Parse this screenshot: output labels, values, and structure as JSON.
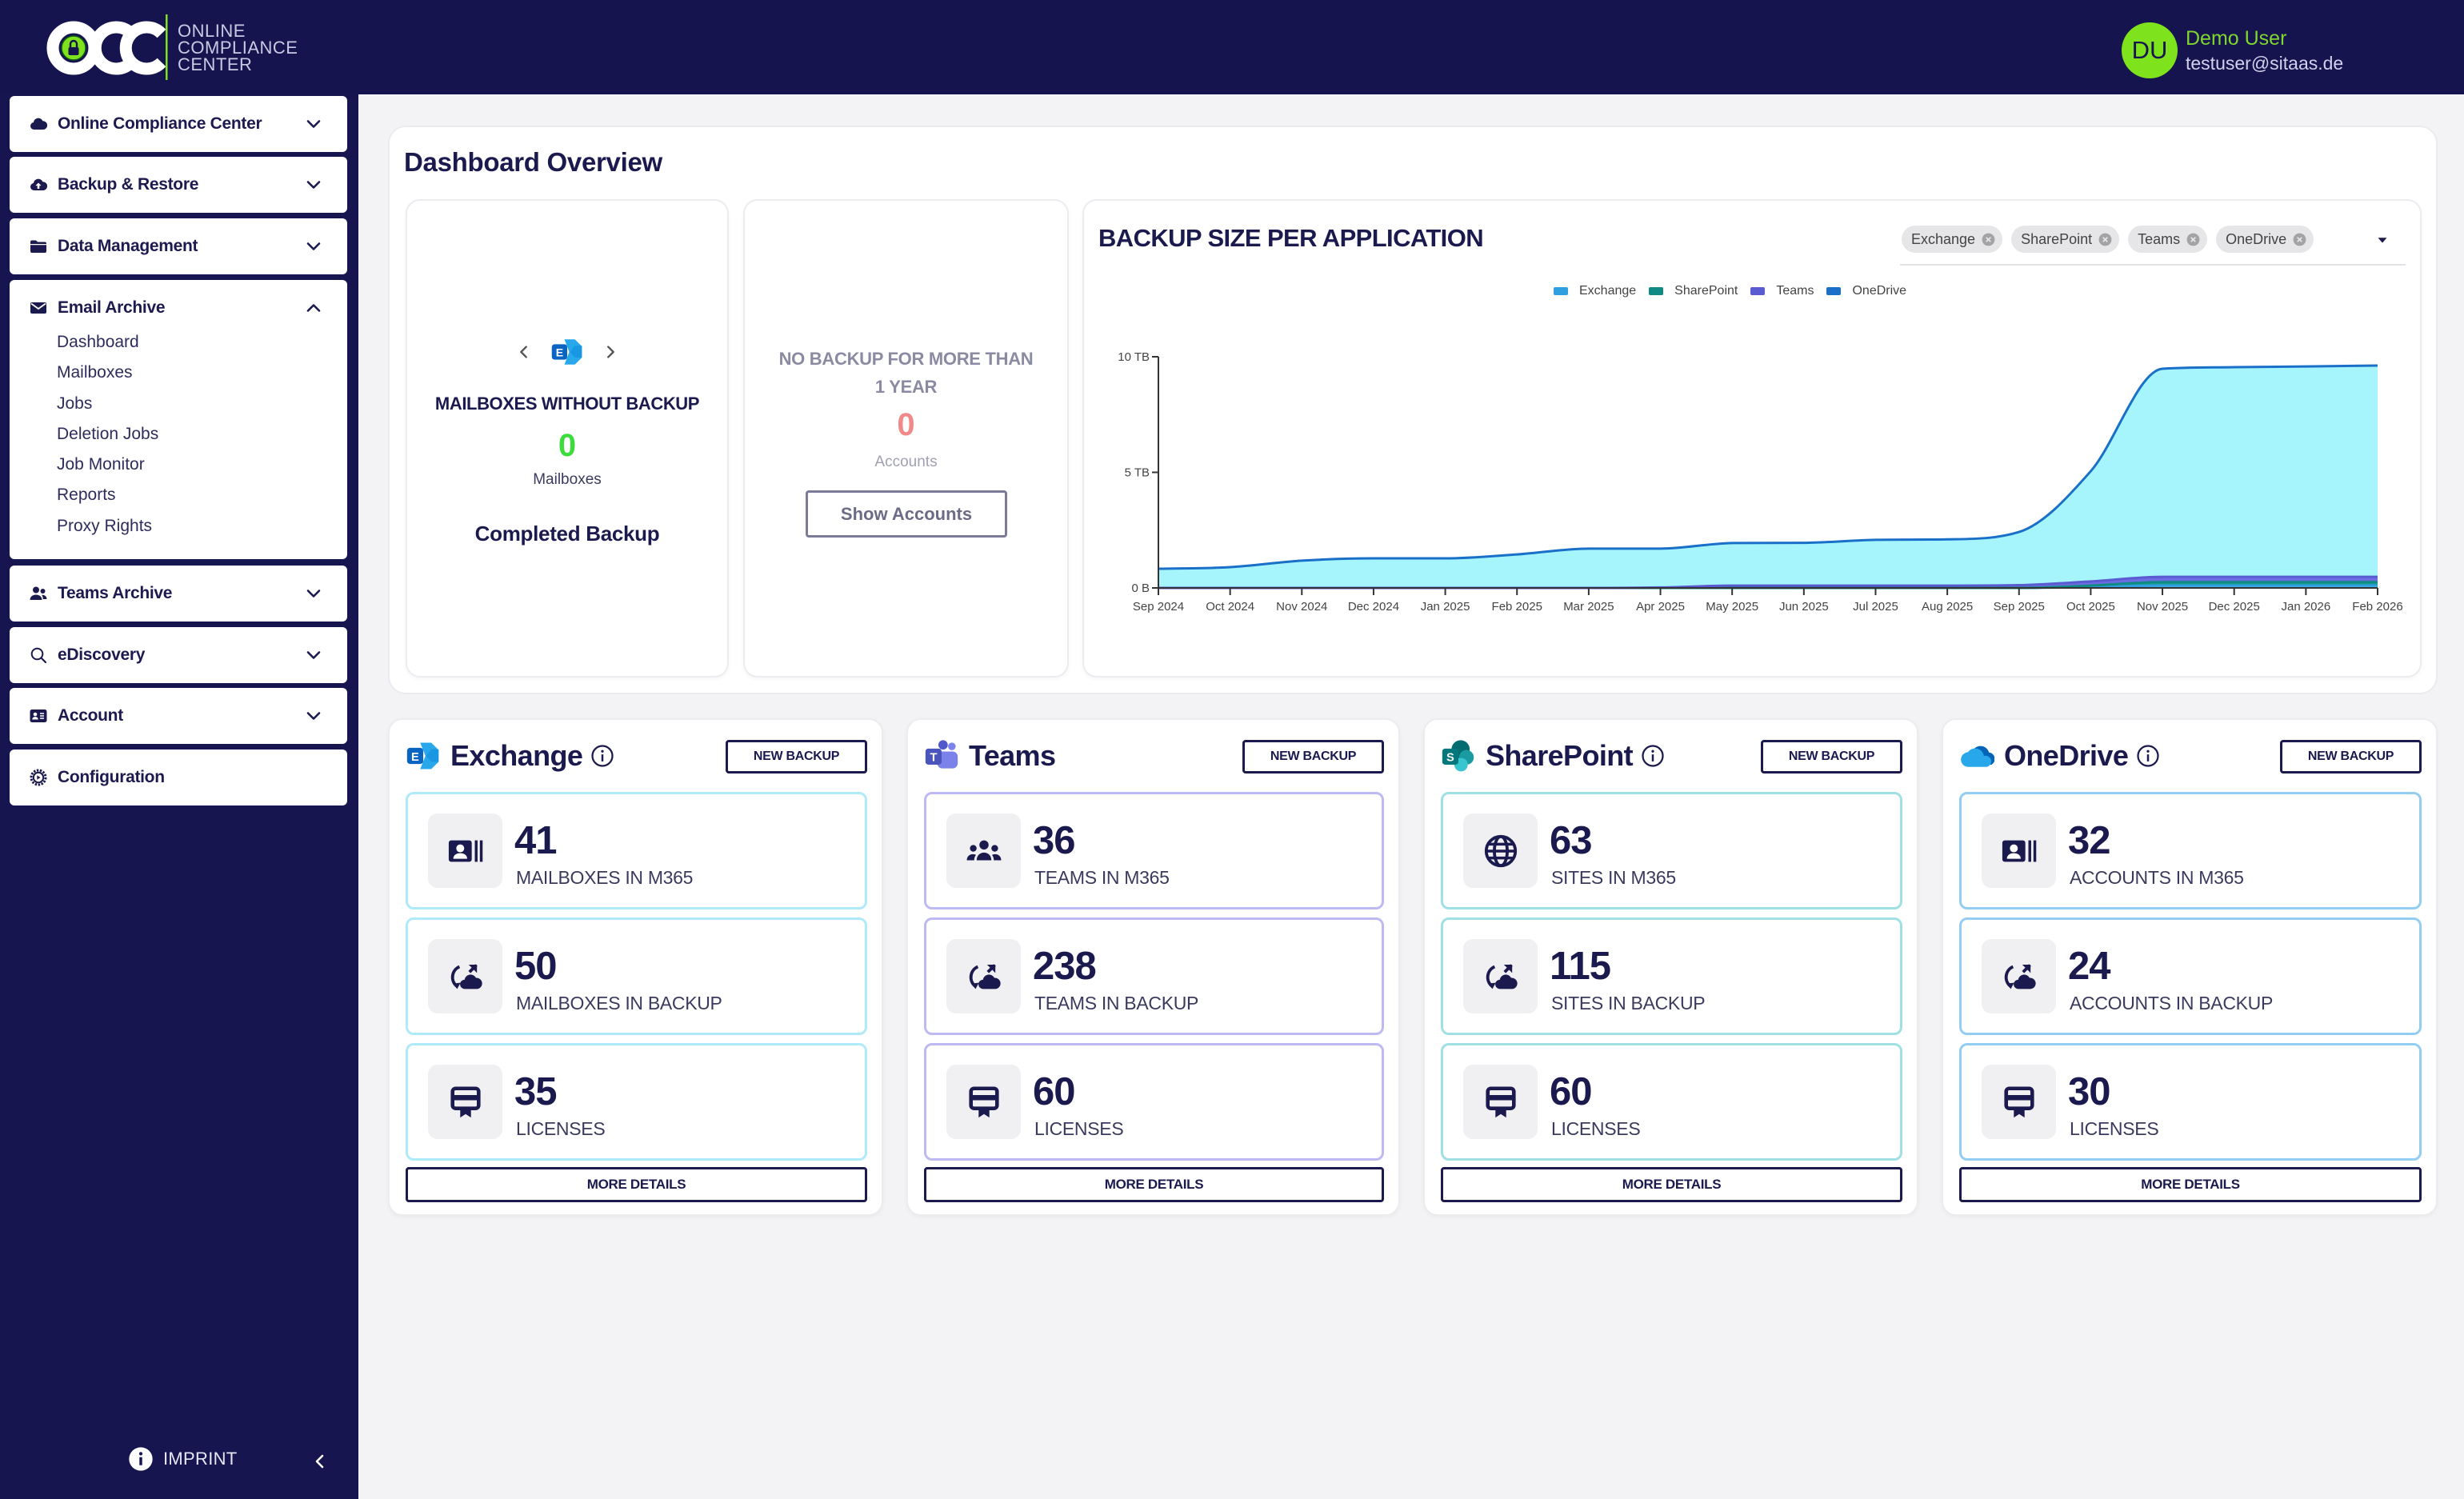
{
  "app": {
    "logo_text": [
      "ONLINE",
      "COMPLIANCE",
      "CENTER"
    ]
  },
  "user": {
    "initials": "DU",
    "name": "Demo User",
    "email": "testuser@sitaas.de"
  },
  "sidebar": {
    "items": [
      {
        "label": "Online Compliance Center",
        "icon": "cloud-icon"
      },
      {
        "label": "Backup & Restore",
        "icon": "cloud-upload-icon"
      },
      {
        "label": "Data Management",
        "icon": "folder-icon"
      },
      {
        "label": "Email Archive",
        "icon": "envelope-icon",
        "expanded": true,
        "subitems": [
          "Dashboard",
          "Mailboxes",
          "Jobs",
          "Deletion Jobs",
          "Job Monitor",
          "Reports",
          "Proxy Rights"
        ]
      },
      {
        "label": "Teams Archive",
        "icon": "users-icon"
      },
      {
        "label": "eDiscovery",
        "icon": "search-icon"
      },
      {
        "label": "Account",
        "icon": "id-card-icon"
      },
      {
        "label": "Configuration",
        "icon": "gear-icon"
      }
    ],
    "imprint": "IMPRINT"
  },
  "dashboard": {
    "title": "Dashboard Overview",
    "without_backup": {
      "title": "MAILBOXES WITHOUT BACKUP",
      "count": "0",
      "unit": "Mailboxes",
      "status": "Completed Backup",
      "current_app": "Exchange"
    },
    "no_backup_year": {
      "title": "NO BACKUP FOR MORE THAN 1 YEAR",
      "count": "0",
      "unit": "Accounts",
      "button": "Show Accounts"
    },
    "chart_filter": {
      "chips": [
        "Exchange",
        "SharePoint",
        "Teams",
        "OneDrive"
      ]
    }
  },
  "colors": {
    "navy": "#16144f",
    "accent_green": "#7ee21c",
    "ok_green": "#3ddc3d",
    "warn_red": "#f08a8a"
  },
  "apps": [
    {
      "name": "Exchange",
      "new_backup": "NEW BACKUP",
      "more_details": "MORE DETAILS",
      "accent": "#aeeaf9",
      "stats": [
        {
          "value": "41",
          "label": "MAILBOXES IN M365",
          "icon": "address-card-icon"
        },
        {
          "value": "50",
          "label": "MAILBOXES IN BACKUP",
          "icon": "cloud-sync-icon"
        },
        {
          "value": "35",
          "label": "LICENSES",
          "icon": "license-icon"
        }
      ]
    },
    {
      "name": "Teams",
      "new_backup": "NEW BACKUP",
      "more_details": "MORE DETAILS",
      "accent": "#bdb9f2",
      "stats": [
        {
          "value": "36",
          "label": "TEAMS IN M365",
          "icon": "users-group-icon"
        },
        {
          "value": "238",
          "label": "TEAMS IN BACKUP",
          "icon": "cloud-sync-icon"
        },
        {
          "value": "60",
          "label": "LICENSES",
          "icon": "license-icon"
        }
      ]
    },
    {
      "name": "SharePoint",
      "new_backup": "NEW BACKUP",
      "more_details": "MORE DETAILS",
      "accent": "#9fe0e4",
      "stats": [
        {
          "value": "63",
          "label": "SITES IN M365",
          "icon": "globe-icon"
        },
        {
          "value": "115",
          "label": "SITES IN BACKUP",
          "icon": "cloud-sync-icon"
        },
        {
          "value": "60",
          "label": "LICENSES",
          "icon": "license-icon"
        }
      ]
    },
    {
      "name": "OneDrive",
      "new_backup": "NEW BACKUP",
      "more_details": "MORE DETAILS",
      "accent": "#93cdf2",
      "stats": [
        {
          "value": "32",
          "label": "ACCOUNTS IN M365",
          "icon": "address-card-icon"
        },
        {
          "value": "24",
          "label": "ACCOUNTS IN BACKUP",
          "icon": "cloud-sync-icon"
        },
        {
          "value": "30",
          "label": "LICENSES",
          "icon": "license-icon"
        }
      ]
    }
  ],
  "chart_data": {
    "type": "area",
    "stacked": true,
    "title": "BACKUP SIZE PER APPLICATION",
    "xlabel": "",
    "ylabel": "",
    "x": [
      "Sep 2024",
      "Oct 2024",
      "Nov 2024",
      "Dec 2024",
      "Jan 2025",
      "Feb 2025",
      "Mar 2025",
      "Apr 2025",
      "May 2025",
      "Jun 2025",
      "Jul 2025",
      "Aug 2025",
      "Sep 2025",
      "Oct 2025",
      "Nov 2025",
      "Dec 2025",
      "Jan 2026",
      "Feb 2026"
    ],
    "yunit": "TB",
    "ylim": [
      0,
      10
    ],
    "yticks": [
      {
        "value": 0,
        "label": "0 B"
      },
      {
        "value": 5,
        "label": "5 TB"
      },
      {
        "value": 10,
        "label": "10 TB"
      }
    ],
    "grid": false,
    "legend": "top-center",
    "series": [
      {
        "name": "Exchange",
        "color": "#2f9fe0",
        "fill": "#56c8f5",
        "values": [
          0,
          0,
          0,
          0,
          0,
          0,
          0,
          0,
          0,
          0,
          0,
          0,
          0,
          0.04,
          0.1,
          0.1,
          0.1,
          0.1
        ]
      },
      {
        "name": "SharePoint",
        "color": "#0f8a84",
        "fill": "#1a9e96",
        "values": [
          0,
          0,
          0,
          0,
          0,
          0,
          0,
          0,
          0,
          0,
          0,
          0,
          0,
          0.06,
          0.15,
          0.15,
          0.15,
          0.15
        ]
      },
      {
        "name": "Teams",
        "color": "#5a5bd0",
        "fill": "#6b6de0",
        "values": [
          0,
          0,
          0,
          0,
          0,
          0,
          0,
          0.02,
          0.1,
          0.1,
          0.1,
          0.1,
          0.12,
          0.18,
          0.23,
          0.23,
          0.23,
          0.23
        ]
      },
      {
        "name": "OneDrive",
        "color": "#1a70c8",
        "fill": "#a6f5fc",
        "values": [
          0.83,
          0.9,
          1.18,
          1.28,
          1.28,
          1.45,
          1.7,
          1.68,
          1.84,
          1.85,
          1.98,
          2.0,
          2.3,
          4.77,
          9.0,
          9.07,
          9.1,
          9.14
        ]
      }
    ]
  }
}
